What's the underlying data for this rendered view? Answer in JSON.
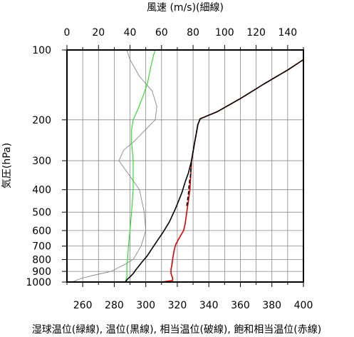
{
  "chart_data": {
    "type": "line",
    "title": "",
    "top_axis": {
      "label": "風速 (m/s)(細線)",
      "range": [
        0,
        150
      ],
      "ticks": [
        0,
        20,
        40,
        60,
        80,
        100,
        120,
        140
      ]
    },
    "x_axis": {
      "label": "湿球温位(緑線), 温位(黒線), 相当温位(破線), 飽和相当温位(赤線)",
      "range": [
        250,
        400
      ],
      "ticks": [
        260,
        280,
        300,
        320,
        340,
        360,
        380,
        400
      ]
    },
    "y_axis": {
      "label": "気圧(hPa)",
      "scale": "log",
      "inverted": true,
      "range": [
        1000,
        100
      ],
      "ticks": [
        100,
        200,
        300,
        400,
        500,
        600,
        700,
        800,
        900,
        1000
      ]
    },
    "grid": true,
    "colors": {
      "wet_bulb": "#22dd22",
      "theta": "#000000",
      "theta_e": "#000000",
      "theta_es": "#dd0000",
      "wind": "#888888",
      "grid": "#888888"
    },
    "series": [
      {
        "key": "wind",
        "axis": "top",
        "dash": "none",
        "points": [
          [
            3,
            1000
          ],
          [
            10,
            960
          ],
          [
            20,
            925
          ],
          [
            28,
            900
          ],
          [
            35,
            850
          ],
          [
            42,
            800
          ],
          [
            47,
            700
          ],
          [
            50,
            600
          ],
          [
            49,
            500
          ],
          [
            46,
            400
          ],
          [
            40,
            350
          ],
          [
            33,
            300
          ],
          [
            36,
            270
          ],
          [
            42,
            250
          ],
          [
            56,
            200
          ],
          [
            57,
            175
          ],
          [
            54,
            150
          ],
          [
            46,
            130
          ],
          [
            40,
            110
          ],
          [
            38,
            100
          ]
        ]
      },
      {
        "key": "wet_bulb",
        "axis": "bottom",
        "dash": "none",
        "points": [
          [
            287,
            1000
          ],
          [
            288,
            950
          ],
          [
            288,
            900
          ],
          [
            288,
            850
          ],
          [
            288.5,
            800
          ],
          [
            289,
            700
          ],
          [
            290,
            600
          ],
          [
            291,
            500
          ],
          [
            292,
            400
          ],
          [
            292,
            350
          ],
          [
            292,
            300
          ],
          [
            291,
            250
          ],
          [
            291,
            220
          ],
          [
            292,
            200
          ],
          [
            295,
            180
          ],
          [
            298,
            160
          ],
          [
            301,
            140
          ],
          [
            303,
            120
          ],
          [
            305,
            105
          ],
          [
            306,
            100
          ]
        ]
      },
      {
        "key": "theta",
        "axis": "bottom",
        "dash": "none",
        "points": [
          [
            287,
            1000
          ],
          [
            288.5,
            970
          ],
          [
            290,
            950
          ],
          [
            292,
            920
          ],
          [
            294,
            880
          ],
          [
            297,
            830
          ],
          [
            301,
            770
          ],
          [
            305,
            700
          ],
          [
            311,
            610
          ],
          [
            315,
            550
          ],
          [
            319,
            480
          ],
          [
            323,
            410
          ],
          [
            325,
            370
          ],
          [
            327,
            340
          ],
          [
            329,
            300
          ],
          [
            331,
            250
          ],
          [
            332,
            230
          ],
          [
            333,
            210
          ],
          [
            334.5,
            198
          ],
          [
            345,
            185
          ],
          [
            360,
            162
          ],
          [
            375,
            140
          ],
          [
            390,
            122
          ],
          [
            400,
            110
          ]
        ]
      },
      {
        "key": "theta_e",
        "axis": "bottom",
        "dash": "dashed",
        "points": [
          [
            326,
            470
          ],
          [
            327,
            420
          ],
          [
            327.5,
            380
          ],
          [
            328,
            360
          ],
          [
            328.3,
            350
          ],
          [
            329,
            300
          ],
          [
            331,
            250
          ],
          [
            332,
            230
          ],
          [
            333,
            210
          ],
          [
            334.5,
            198
          ]
        ]
      },
      {
        "key": "theta_es",
        "axis": "bottom",
        "dash": "none",
        "points": [
          [
            310,
            1000
          ],
          [
            317,
            985
          ],
          [
            317,
            960
          ],
          [
            316,
            920
          ],
          [
            316,
            880
          ],
          [
            316.5,
            850
          ],
          [
            317,
            800
          ],
          [
            318,
            730
          ],
          [
            319,
            690
          ],
          [
            321,
            650
          ],
          [
            324,
            600
          ],
          [
            325,
            560
          ],
          [
            326,
            500
          ],
          [
            327,
            450
          ],
          [
            328,
            400
          ],
          [
            328.5,
            350
          ],
          [
            329,
            300
          ],
          [
            331,
            250
          ],
          [
            332,
            230
          ],
          [
            333,
            210
          ],
          [
            334.5,
            198
          ],
          [
            345,
            185
          ],
          [
            360,
            162
          ],
          [
            375,
            140
          ],
          [
            390,
            122
          ],
          [
            400,
            110
          ]
        ]
      }
    ]
  }
}
